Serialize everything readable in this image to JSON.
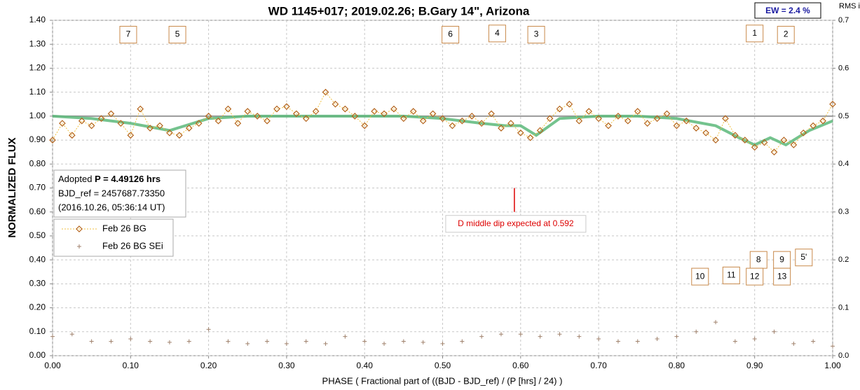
{
  "chart_data": {
    "type": "scatter",
    "title": "WD 1145+017; 2019.02.26; B.Gary 14\", Arizona",
    "xlabel": "PHASE ( Fractional part of ((BJD - BJD_ref) / (P [hrs] / 24) )",
    "ylabel": "NORMALIZED FLUX",
    "y2label": "RMS i",
    "ew_box": "EW = 2.4 %",
    "xlim": [
      0,
      1
    ],
    "ylim": [
      0,
      1.4
    ],
    "y2lim": [
      0,
      0.7
    ],
    "xticks": [
      {
        "value": 0,
        "label": "0.00"
      },
      {
        "value": 0.1,
        "label": "0.10"
      },
      {
        "value": 0.2,
        "label": "0.20"
      },
      {
        "value": 0.3,
        "label": "0.30"
      },
      {
        "value": 0.4,
        "label": "0.40"
      },
      {
        "value": 0.5,
        "label": "0.50"
      },
      {
        "value": 0.6,
        "label": "0.60"
      },
      {
        "value": 0.7,
        "label": "0.70"
      },
      {
        "value": 0.8,
        "label": "0.80"
      },
      {
        "value": 0.9,
        "label": "0.90"
      },
      {
        "value": 1,
        "label": "1.00"
      }
    ],
    "yticks": [
      {
        "value": 0,
        "label": "0.00"
      },
      {
        "value": 0.1,
        "label": "0.10"
      },
      {
        "value": 0.2,
        "label": "0.20"
      },
      {
        "value": 0.3,
        "label": "0.30"
      },
      {
        "value": 0.4,
        "label": "0.40"
      },
      {
        "value": 0.5,
        "label": "0.50"
      },
      {
        "value": 0.6,
        "label": "0.60"
      },
      {
        "value": 0.7,
        "label": "0.70"
      },
      {
        "value": 0.8,
        "label": "0.80"
      },
      {
        "value": 0.9,
        "label": "0.90"
      },
      {
        "value": 1,
        "label": "1.00"
      },
      {
        "value": 1.1,
        "label": "1.10"
      },
      {
        "value": 1.2,
        "label": "1.20"
      },
      {
        "value": 1.3,
        "label": "1.30"
      },
      {
        "value": 1.4,
        "label": "1.40"
      }
    ],
    "y2ticks": [
      {
        "value": 0,
        "label": "0.0"
      },
      0.1,
      0.2,
      0.3,
      0.4,
      0.5,
      0.6,
      0.7
    ],
    "grid": true,
    "reference_line": 1,
    "series": [
      {
        "name": "Feb 26 BG",
        "color": "#b5651d",
        "line_color": "#f0c040",
        "marker": "diamond",
        "x": [
          0,
          0.0125,
          0.025,
          0.0375,
          0.05,
          0.0625,
          0.075,
          0.0875,
          0.1,
          0.1125,
          0.125,
          0.1375,
          0.15,
          0.1625,
          0.175,
          0.1875,
          0.2,
          0.2125,
          0.225,
          0.2375,
          0.25,
          0.2625,
          0.275,
          0.2875,
          0.3,
          0.3125,
          0.325,
          0.3375,
          0.35,
          0.3625,
          0.375,
          0.3875,
          0.4,
          0.4125,
          0.425,
          0.4375,
          0.45,
          0.4625,
          0.475,
          0.4875,
          0.5,
          0.5125,
          0.525,
          0.5375,
          0.55,
          0.5625,
          0.575,
          0.5875,
          0.6,
          0.6125,
          0.625,
          0.6375,
          0.65,
          0.6625,
          0.675,
          0.6875,
          0.7,
          0.7125,
          0.725,
          0.7375,
          0.75,
          0.7625,
          0.775,
          0.7875,
          0.8,
          0.8125,
          0.825,
          0.8375,
          0.85,
          0.8625,
          0.875,
          0.8875,
          0.9,
          0.9125,
          0.925,
          0.9375,
          0.95,
          0.9625,
          0.975,
          0.9875,
          1
        ],
        "values": [
          0.9,
          0.97,
          0.92,
          0.98,
          0.96,
          0.99,
          1.01,
          0.97,
          0.92,
          1.03,
          0.95,
          0.96,
          0.93,
          0.92,
          0.95,
          0.97,
          1,
          0.98,
          1.03,
          0.97,
          1.02,
          1,
          0.98,
          1.03,
          1.04,
          1.01,
          0.99,
          1.02,
          1.1,
          1.05,
          1.03,
          1,
          0.96,
          1.02,
          1.01,
          1.03,
          0.99,
          1.02,
          0.98,
          1.01,
          0.99,
          0.96,
          0.98,
          1,
          0.97,
          1.01,
          0.95,
          0.97,
          0.93,
          0.91,
          0.94,
          0.99,
          1.03,
          1.05,
          0.98,
          1.02,
          0.99,
          0.96,
          1,
          0.98,
          1.02,
          0.97,
          0.99,
          1.01,
          0.96,
          0.98,
          0.95,
          0.93,
          0.9,
          0.99,
          0.92,
          0.9,
          0.87,
          0.89,
          0.85,
          0.9,
          0.88,
          0.93,
          0.96,
          0.98,
          1.05
        ]
      },
      {
        "name": "Feb 26 BG SEi",
        "color": "#a0826d",
        "marker": "plus",
        "axis": "y2",
        "x": [
          0,
          0.025,
          0.05,
          0.075,
          0.1,
          0.125,
          0.15,
          0.175,
          0.2,
          0.225,
          0.25,
          0.275,
          0.3,
          0.325,
          0.35,
          0.375,
          0.4,
          0.425,
          0.45,
          0.475,
          0.5,
          0.525,
          0.55,
          0.575,
          0.6,
          0.625,
          0.65,
          0.675,
          0.7,
          0.725,
          0.75,
          0.775,
          0.8,
          0.825,
          0.85,
          0.875,
          0.9,
          0.925,
          0.95,
          0.975,
          1
        ],
        "values": [
          0.04,
          0.045,
          0.03,
          0.03,
          0.035,
          0.03,
          0.028,
          0.03,
          0.055,
          0.03,
          0.025,
          0.03,
          0.025,
          0.03,
          0.025,
          0.04,
          0.03,
          0.025,
          0.03,
          0.028,
          0.025,
          0.03,
          0.04,
          0.045,
          0.045,
          0.04,
          0.045,
          0.04,
          0.035,
          0.03,
          0.03,
          0.035,
          0.04,
          0.05,
          0.07,
          0.03,
          0.035,
          0.05,
          0.025,
          0.03,
          0.02
        ]
      }
    ],
    "model": {
      "color": "#5cb87a",
      "x": [
        0,
        0.05,
        0.1,
        0.15,
        0.2,
        0.25,
        0.3,
        0.35,
        0.4,
        0.45,
        0.5,
        0.55,
        0.58,
        0.6,
        0.62,
        0.65,
        0.7,
        0.75,
        0.8,
        0.85,
        0.88,
        0.9,
        0.92,
        0.94,
        0.97,
        1
      ],
      "values": [
        1,
        0.99,
        0.97,
        0.94,
        0.99,
        1,
        1,
        1,
        1,
        1,
        0.99,
        0.97,
        0.96,
        0.96,
        0.92,
        0.99,
        1,
        1,
        0.99,
        0.96,
        0.91,
        0.88,
        0.91,
        0.88,
        0.94,
        0.98
      ]
    },
    "info_box": [
      "Adopted",
      "P = 4.49126 hrs",
      "BJD_ref = 2457687.73350",
      "(2016.10.26, 05:36:14 UT)"
    ],
    "expected_dip": {
      "label": "D middle dip expected at 0.592",
      "x": 0.592,
      "y_range": [
        0.6,
        0.7
      ]
    },
    "annotations": [
      {
        "text": "7",
        "x": 0.097,
        "y": 1.34
      },
      {
        "text": "5",
        "x": 0.16,
        "y": 1.34
      },
      {
        "text": "6",
        "x": 0.51,
        "y": 1.34
      },
      {
        "text": "4",
        "x": 0.57,
        "y": 1.345
      },
      {
        "text": "3",
        "x": 0.62,
        "y": 1.34
      },
      {
        "text": "1",
        "x": 0.9,
        "y": 1.345
      },
      {
        "text": "2",
        "x": 0.94,
        "y": 1.34
      },
      {
        "text": "8",
        "x": 0.905,
        "y": 0.4
      },
      {
        "text": "9",
        "x": 0.935,
        "y": 0.4
      },
      {
        "text": "5'",
        "x": 0.963,
        "y": 0.41
      },
      {
        "text": "10",
        "x": 0.83,
        "y": 0.33
      },
      {
        "text": "11",
        "x": 0.87,
        "y": 0.335
      },
      {
        "text": "12",
        "x": 0.9,
        "y": 0.33
      },
      {
        "text": "13",
        "x": 0.935,
        "y": 0.33
      }
    ]
  }
}
